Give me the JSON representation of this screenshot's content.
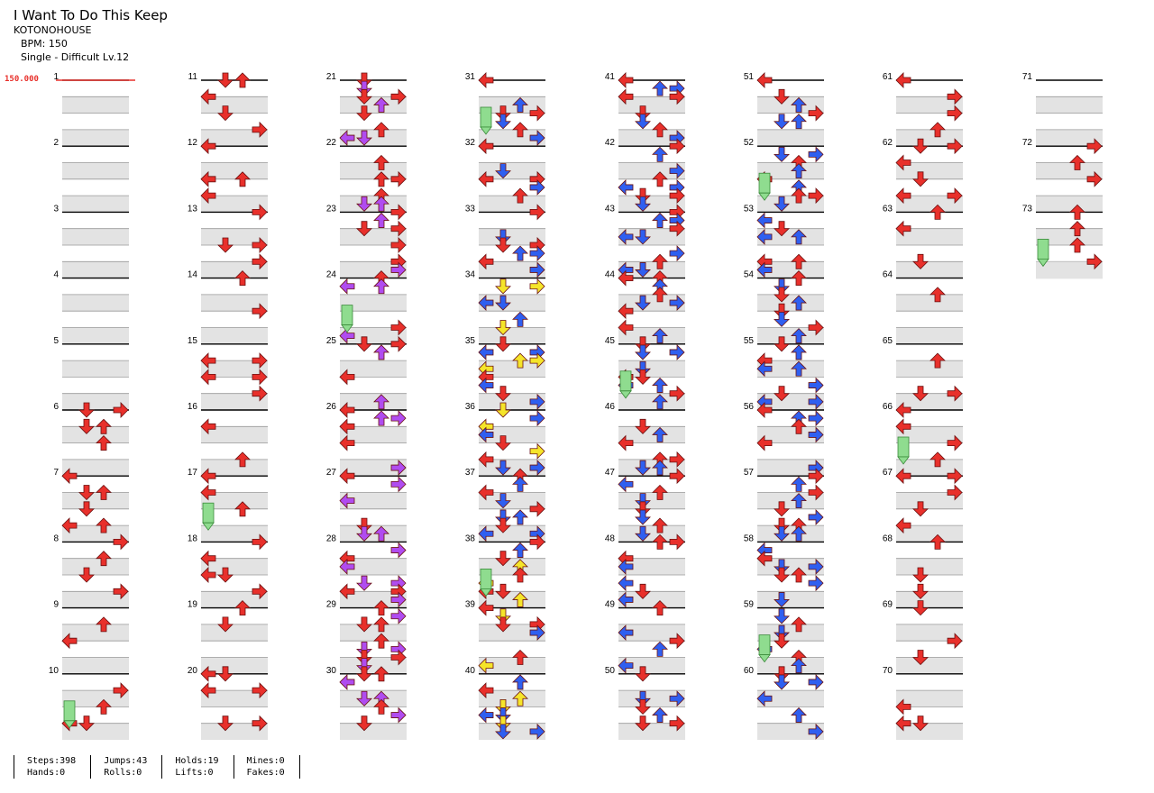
{
  "song": {
    "title": "I Want To Do This Keep",
    "artist": "KOTONOHOUSE",
    "bpm_line": "BPM: 150",
    "difficulty_line": "Single - Difficult Lv.12"
  },
  "bpm_marker": "150.000",
  "measures": {
    "count": 73,
    "numbers": [
      "1",
      "2",
      "3",
      "4",
      "5",
      "6",
      "7",
      "8",
      "9",
      "10",
      "11",
      "12",
      "13",
      "14",
      "15",
      "16",
      "17",
      "18",
      "19",
      "20",
      "21",
      "22",
      "23",
      "24",
      "25",
      "26",
      "27",
      "28",
      "29",
      "30",
      "31",
      "32",
      "33",
      "34",
      "35",
      "36",
      "37",
      "38",
      "39",
      "40",
      "41",
      "42",
      "43",
      "44",
      "45",
      "46",
      "47",
      "48",
      "49",
      "50",
      "51",
      "52",
      "53",
      "54",
      "55",
      "56",
      "57",
      "58",
      "59",
      "60",
      "61",
      "62",
      "63",
      "64",
      "65",
      "66",
      "67",
      "68",
      "69",
      "70",
      "71",
      "72",
      "73"
    ]
  },
  "arrow_colors": {
    "quarter": "#e8302b",
    "eighth": "#2f5ff0",
    "sixteenth": "#b04cf0",
    "twelfth": "#f5e52a",
    "hold": "#8fdc8f"
  },
  "stats": {
    "steps": "Steps:398",
    "jumps": "Jumps:43",
    "holds": "Holds:19",
    "mines": "Mines:0",
    "hands": "Hands:0",
    "rolls": "Rolls:0",
    "lifts": "Lifts:0",
    "fakes": "Fakes:0"
  }
}
